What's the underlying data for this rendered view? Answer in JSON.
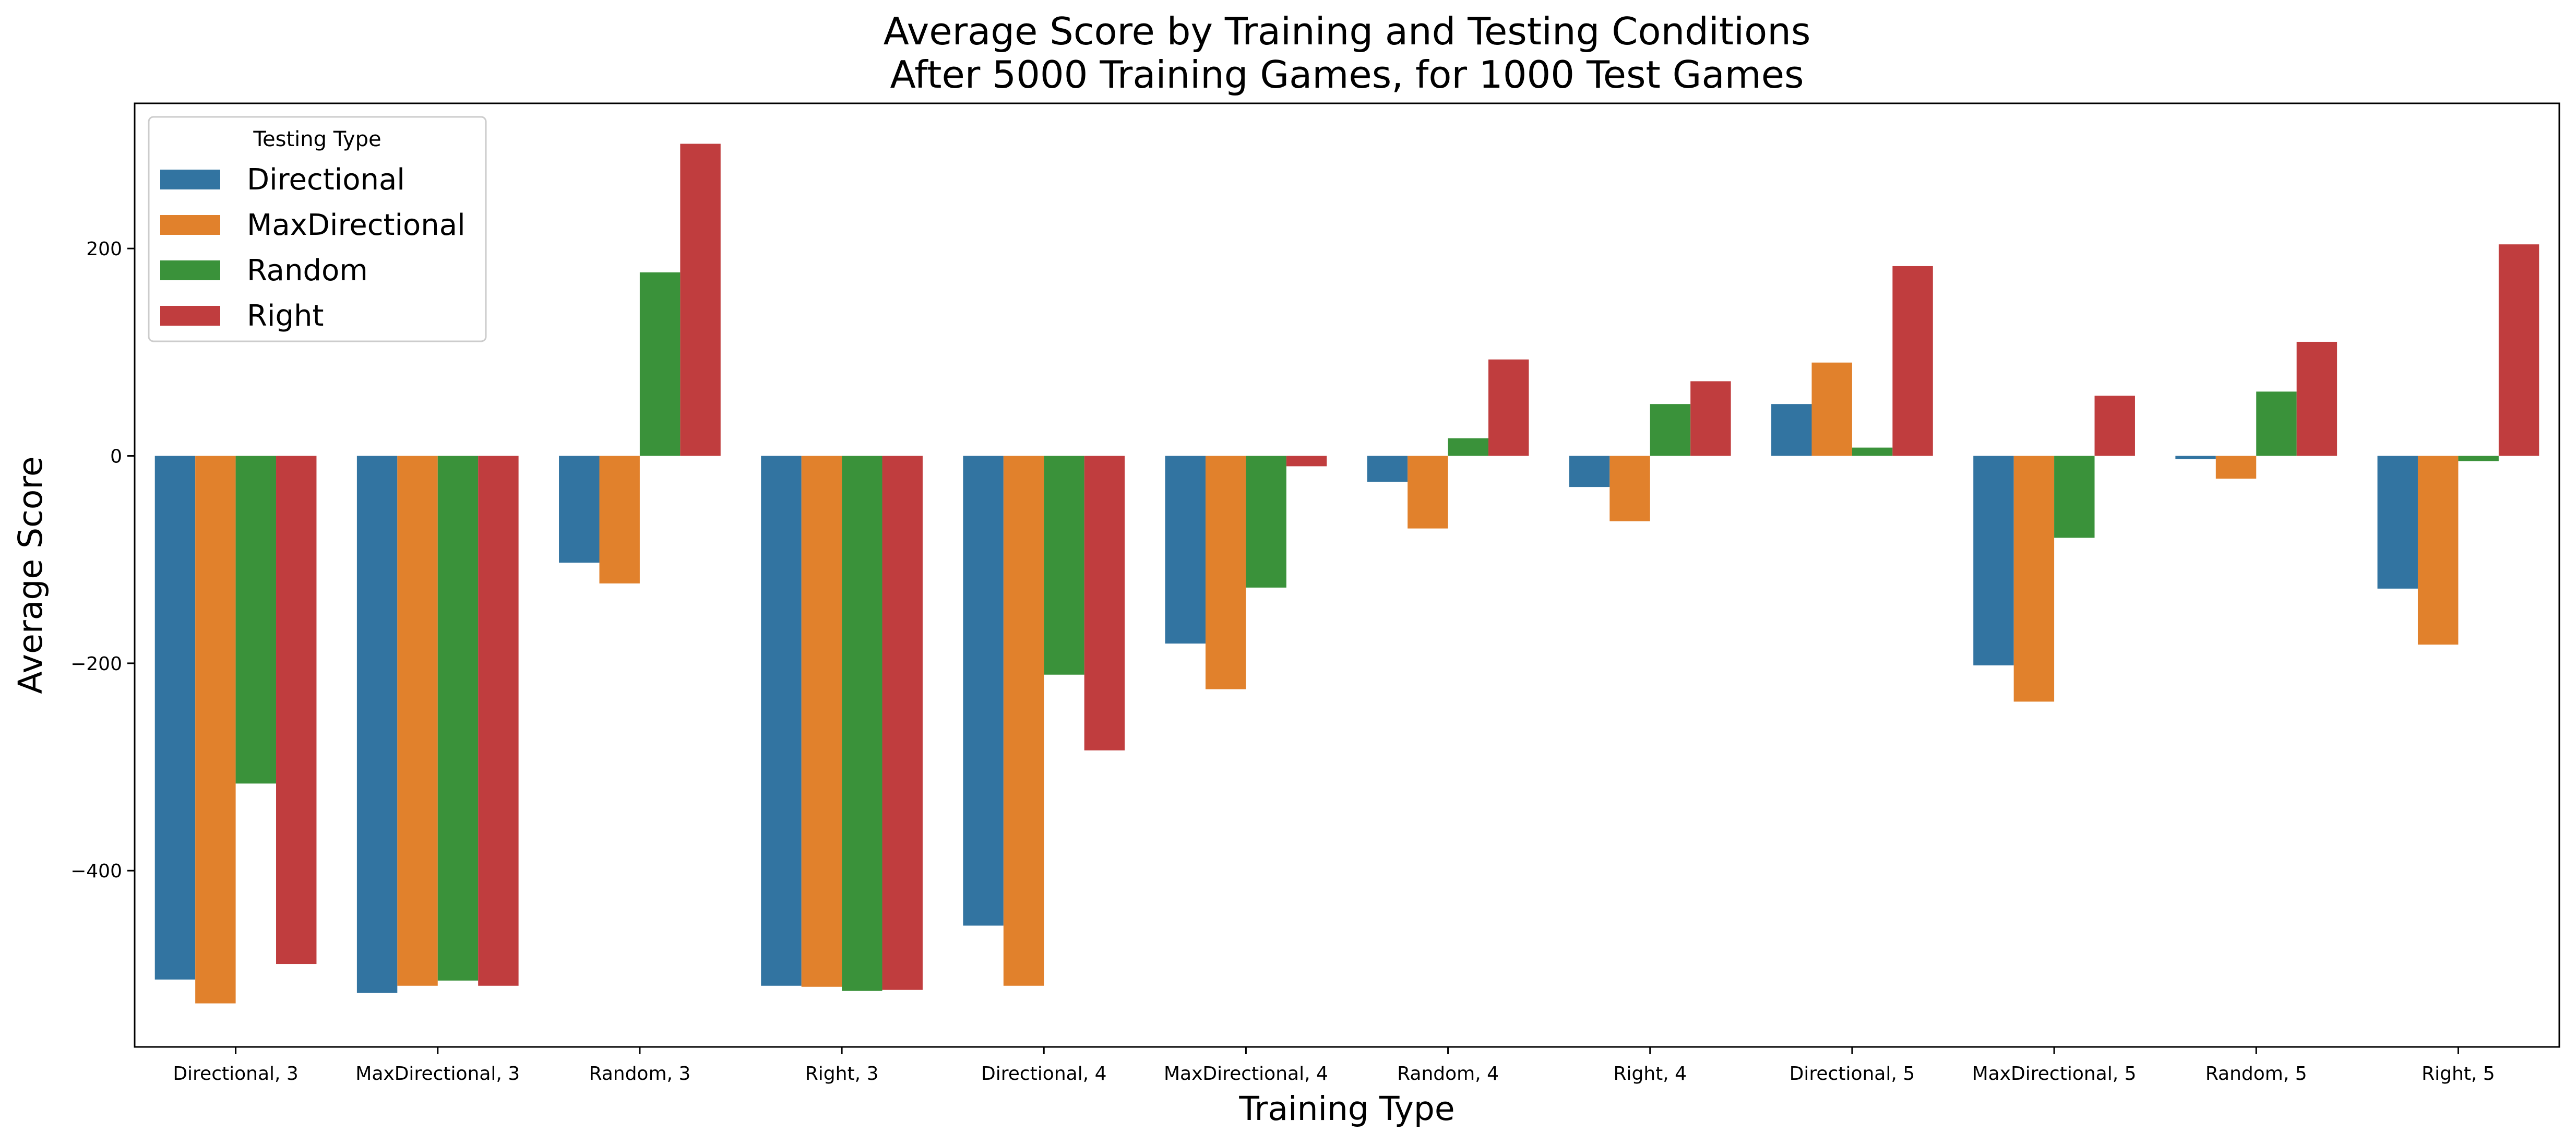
{
  "chart_data": {
    "type": "bar",
    "title": "Average Score by Training and Testing Conditions",
    "subtitle": "After 5000 Training Games, for 1000 Test Games",
    "xlabel": "Training Type",
    "ylabel": "Average Score",
    "ylim": [
      -570,
      340
    ],
    "yticks": [
      -400,
      -200,
      0,
      200
    ],
    "ytick_labels": [
      "−400",
      "−200",
      "0",
      "200"
    ],
    "grid": false,
    "legend": {
      "title": "Testing Type",
      "placement": "top-left"
    },
    "categories": [
      "Directional, 3",
      "MaxDirectional, 3",
      "Random, 3",
      "Right, 3",
      "Directional, 4",
      "MaxDirectional, 4",
      "Random, 4",
      "Right, 4",
      "Directional, 5",
      "MaxDirectional, 5",
      "Random, 5",
      "Right, 5"
    ],
    "series": [
      {
        "name": "Directional",
        "color": "#3274a1",
        "values": [
          -505,
          -518,
          -103,
          -511,
          -453,
          -181,
          -25,
          -30,
          50,
          -202,
          -3,
          -128
        ]
      },
      {
        "name": "MaxDirectional",
        "color": "#e1812c",
        "values": [
          -528,
          -511,
          -123,
          -512,
          -511,
          -225,
          -70,
          -63,
          90,
          -237,
          -22,
          -182
        ]
      },
      {
        "name": "Random",
        "color": "#3a923a",
        "values": [
          -316,
          -506,
          177,
          -516,
          -211,
          -127,
          17,
          50,
          8,
          -79,
          62,
          -5
        ]
      },
      {
        "name": "Right",
        "color": "#c03d3e",
        "values": [
          -490,
          -511,
          301,
          -515,
          -284,
          -10,
          93,
          72,
          183,
          58,
          110,
          204
        ]
      }
    ]
  }
}
